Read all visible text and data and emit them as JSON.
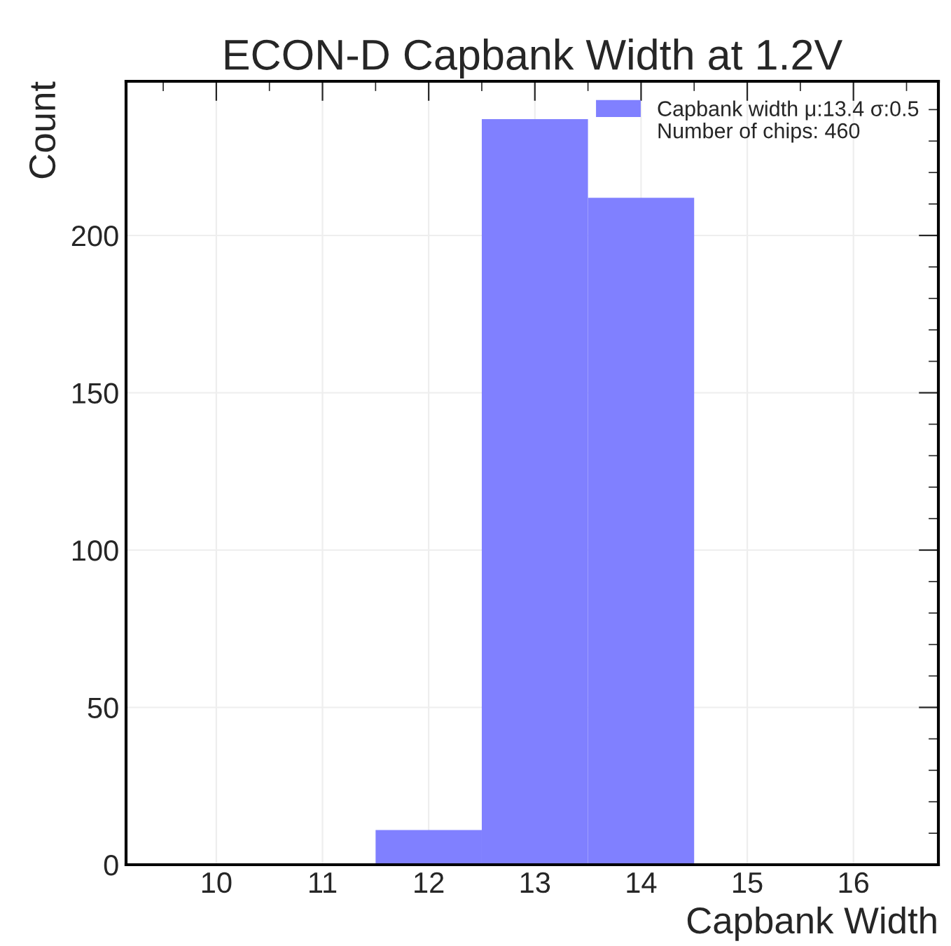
{
  "chart_data": {
    "type": "histogram",
    "title": "ECON-D Capbank Width at 1.2V",
    "xlabel": "Capbank Width",
    "ylabel": "Count",
    "bins": [
      11.5,
      12.5,
      13.5,
      14.5
    ],
    "series": [
      {
        "name": "Capbank width μ:13.4 σ:0.5",
        "color": "#8080ff",
        "values": [
          11,
          237,
          212
        ]
      }
    ],
    "annotations": [
      "Number of chips: 460"
    ],
    "xlim": [
      9.15,
      16.8
    ],
    "xticks": [
      10,
      11,
      12,
      13,
      14,
      15,
      16
    ],
    "ylim": [
      0,
      249
    ],
    "yticks": [
      0,
      50,
      100,
      150,
      200
    ],
    "grid": true,
    "legend": "top right"
  }
}
